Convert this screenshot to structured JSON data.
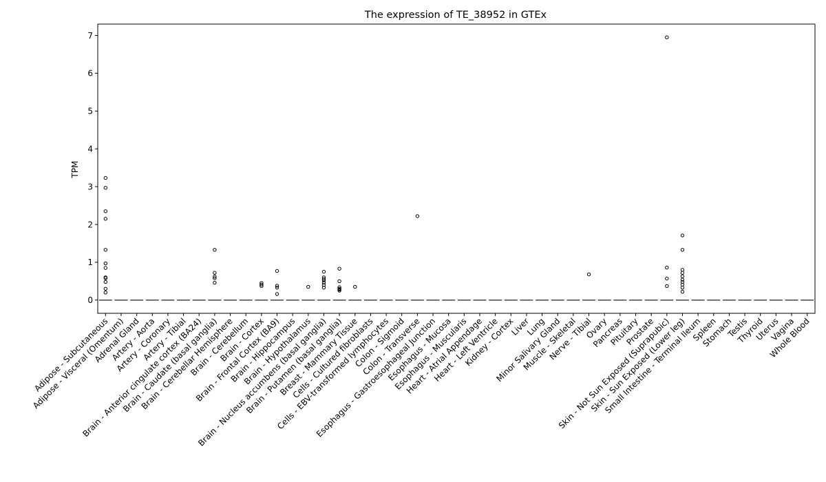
{
  "chart_data": {
    "type": "box",
    "title": "The expression of TE_38952 in GTEx",
    "xlabel": "",
    "ylabel": "TPM",
    "ylim": [
      -0.35,
      7.3
    ],
    "yticks": [
      0,
      1,
      2,
      3,
      4,
      5,
      6,
      7
    ],
    "grid": false,
    "legend": "none",
    "colors": {
      "median": "#555555",
      "outlier": "#000000",
      "axis": "#000000"
    },
    "categories": [
      "Adipose - Subcutaneous",
      "Adipose - Visceral (Omentum)",
      "Adrenal Gland",
      "Artery - Aorta",
      "Artery - Coronary",
      "Artery - Tibial",
      "Brain - Anterior cingulate cortex (BA24)",
      "Brain - Caudate (basal ganglia)",
      "Brain - Cerebellar Hemisphere",
      "Brain - Cerebellum",
      "Brain - Cortex",
      "Brain - Frontal Cortex (BA9)",
      "Brain - Hippocampus",
      "Brain - Hypothalamus",
      "Brain - Nucleus accumbens (basal ganglia)",
      "Brain - Putamen (basal ganglia)",
      "Breast - Mammary Tissue",
      "Cells - Cultured fibroblasts",
      "Cells - EBV-transformed lymphocytes",
      "Colon - Sigmoid",
      "Colon - Transverse",
      "Esophagus - Gastroesophageal Junction",
      "Esophagus - Mucosa",
      "Esophagus - Muscularis",
      "Heart - Atrial Appendage",
      "Heart - Left Ventricle",
      "Kidney - Cortex",
      "Liver",
      "Lung",
      "Minor Salivary Gland",
      "Muscle - Skeletal",
      "Nerve - Tibial",
      "Ovary",
      "Pancreas",
      "Pituitary",
      "Prostate",
      "Skin - Not Sun Exposed (Suprapubic)",
      "Skin - Sun Exposed (Lower leg)",
      "Small Intestine - Terminal Ileum",
      "Spleen",
      "Stomach",
      "Testis",
      "Thyroid",
      "Uterus",
      "Vagina",
      "Whole Blood"
    ],
    "medians": [
      0,
      0,
      0,
      0,
      0,
      0,
      0,
      0,
      0,
      0,
      0,
      0,
      0,
      0,
      0,
      0,
      0,
      0,
      0,
      0,
      0,
      0,
      0,
      0,
      0,
      0,
      0,
      0,
      0,
      0,
      0,
      0,
      0,
      0,
      0,
      0,
      0,
      0,
      0,
      0,
      0,
      0,
      0,
      0,
      0,
      0
    ],
    "outliers": [
      [
        3.23,
        2.97,
        2.35,
        2.15,
        1.33,
        0.97,
        0.85,
        0.6,
        0.58,
        0.48,
        0.3,
        0.2
      ],
      [],
      [],
      [],
      [],
      [],
      [],
      [
        1.33,
        0.72,
        0.62,
        0.58,
        0.46
      ],
      [],
      [],
      [
        0.45,
        0.41,
        0.37
      ],
      [
        0.77,
        0.38,
        0.33,
        0.16
      ],
      [],
      [
        0.35
      ],
      [
        0.75,
        0.6,
        0.56,
        0.52,
        0.46,
        0.4,
        0.33
      ],
      [
        0.83,
        0.5,
        0.34,
        0.3,
        0.28,
        0.25
      ],
      [
        0.35
      ],
      [],
      [],
      [],
      [
        2.22
      ],
      [],
      [],
      [],
      [],
      [],
      [],
      [],
      [],
      [],
      [],
      [
        0.68
      ],
      [],
      [],
      [],
      [],
      [
        6.95,
        0.86,
        0.57,
        0.37
      ],
      [
        1.71,
        1.33,
        0.8,
        0.72,
        0.63,
        0.54,
        0.48,
        0.41,
        0.33,
        0.22
      ],
      [],
      [],
      [],
      [],
      [],
      [],
      [],
      []
    ]
  }
}
